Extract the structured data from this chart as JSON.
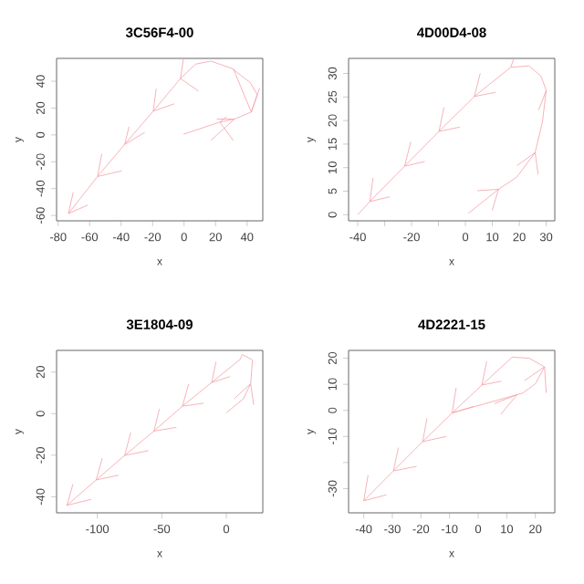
{
  "chart_data": [
    {
      "type": "line",
      "title": "3C56F4-00",
      "xlabel": "x",
      "ylabel": "y",
      "xlim": [
        -81,
        50
      ],
      "ylim": [
        -64,
        57
      ],
      "xticks": [
        -80,
        -60,
        -40,
        -20,
        0,
        20,
        40
      ],
      "yticks": [
        -60,
        -40,
        -20,
        0,
        20,
        40
      ],
      "series": [
        {
          "color": "#f4a0a8",
          "x": [
            -73.5,
            -55,
            -37.7,
            -19.6,
            -2.3,
            7.3,
            17,
            30.4,
            42,
            46.5,
            42.7,
            32,
            22.7,
            -0.4
          ],
          "values": [
            -58.6,
            -31,
            -7,
            17.7,
            42,
            52.7,
            55,
            49.5,
            39,
            30,
            17,
            11.8,
            9.5,
            0.5
          ]
        },
        {
          "color": "#f4a0a8",
          "x": [
            -70.4,
            -73.5,
            -61.2,
            null,
            -52.3,
            -55,
            -39.6,
            null,
            -35,
            -37.7,
            -25,
            null,
            -17.7,
            -19.6,
            -6.2,
            null,
            -0.4,
            -2.3,
            9.2,
            null,
            27,
            22.7,
            31.2,
            null,
            31.2,
            42.7,
            48,
            null,
            20.8,
            32,
            17
          ],
          "values": [
            -42.7,
            -58.6,
            -52.3,
            null,
            -14.1,
            -31,
            -26.8,
            null,
            6.1,
            -7,
            1.8,
            null,
            34.5,
            17.7,
            23.2,
            null,
            57,
            42,
            32.7,
            null,
            13.6,
            9.5,
            -4.1,
            null,
            49.5,
            17,
            35,
            null,
            11.8,
            11.8,
            -4.1
          ]
        }
      ]
    },
    {
      "type": "line",
      "title": "4D00D4-08",
      "xlabel": "x",
      "ylabel": "y",
      "xlim": [
        -43.4,
        33.2
      ],
      "ylim": [
        -1.3,
        33.2
      ],
      "xticks": [
        -40,
        {
          "value": -30,
          "label": null
        },
        -20,
        {
          "value": -10,
          "label": null
        },
        0,
        10,
        20,
        30
      ],
      "yticks": [
        0,
        5,
        10,
        15,
        20,
        25,
        30
      ],
      "series": [
        {
          "color": "#f4a0a8",
          "x": [
            -40,
            -35.5,
            -22.6,
            -9.8,
            3.3,
            16.8,
            23.6,
            28.1,
            30,
            28.6,
            25.9,
            19.1,
            12.3,
            1.1
          ],
          "values": [
            0,
            2.8,
            10.3,
            17.7,
            25.1,
            31.3,
            31.6,
            29.4,
            26.4,
            19.7,
            13.2,
            8,
            5.4,
            0.3
          ]
        },
        {
          "color": "#f4a0a8",
          "x": [
            -34.3,
            -35.5,
            -28.1,
            null,
            -20.3,
            -22.6,
            -15.1,
            null,
            -8,
            -9.8,
            -2.1,
            null,
            5.5,
            3.3,
            11.2,
            null,
            17.9,
            16.8,
            null,
            27.2,
            30,
            null,
            19.1,
            25.9,
            27,
            null,
            4.4,
            12.3,
            9.9
          ],
          "values": [
            7.8,
            2.8,
            3.8,
            null,
            15.5,
            10.3,
            11.3,
            null,
            22.8,
            17.7,
            18.6,
            null,
            30,
            25.1,
            26,
            null,
            33,
            31.3,
            null,
            22.2,
            26.4,
            null,
            10.4,
            13.2,
            8.6,
            null,
            5.1,
            5.4,
            0.9
          ]
        }
      ]
    },
    {
      "type": "line",
      "title": "3E1804-09",
      "xlabel": "x",
      "ylabel": "y",
      "xlim": [
        -131.6,
        28.3
      ],
      "ylim": [
        -47.7,
        30.4
      ],
      "xticks": [
        -100,
        -50,
        0
      ],
      "yticks": [
        -40,
        -20,
        0,
        20
      ],
      "series": [
        {
          "color": "#f4a0a8",
          "x": [
            -123.6,
            -100.9,
            -78.8,
            -56.1,
            -34,
            -11.3,
            10.8,
            12.3,
            20.3,
            18.9,
            13.2,
            0
          ],
          "values": [
            -44.1,
            -31.9,
            -20.1,
            -8.4,
            3.6,
            15,
            26.1,
            28.4,
            25.8,
            14.4,
            7.1,
            0.4
          ]
        },
        {
          "color": "#f4a0a8",
          "x": [
            -118.9,
            -123.6,
            -104.7,
            null,
            -96.2,
            -100.9,
            -83.5,
            null,
            -74.1,
            -78.8,
            -60.4,
            null,
            -51.9,
            -56.1,
            -38.7,
            null,
            -29.2,
            -34,
            -17.5,
            null,
            -8,
            -11.3,
            2.8,
            null,
            21.2,
            18.9,
            6.1
          ],
          "values": [
            -33.9,
            -44.1,
            -41.2,
            null,
            -21.4,
            -31.9,
            -29.6,
            null,
            -9,
            -20.1,
            -17.8,
            null,
            2.2,
            -8.4,
            -6.6,
            null,
            14.3,
            3.6,
            5,
            null,
            24.9,
            15,
            17.8,
            null,
            4.2,
            14.4,
            7.1
          ]
        }
      ]
    },
    {
      "type": "line",
      "title": "4D2221-15",
      "xlabel": "x",
      "ylabel": "y",
      "xlim": [
        -45.3,
        26.8
      ],
      "ylim": [
        -39.3,
        23
      ],
      "xticks": [
        -40,
        -30,
        -20,
        -10,
        0,
        10,
        20
      ],
      "yticks": [
        -30,
        {
          "value": -20,
          "label": null
        },
        -10,
        0,
        10,
        20
      ],
      "series": [
        {
          "color": "#f4a0a8",
          "x": [
            -40,
            -29.6,
            -19.4,
            -9.1,
            1.3,
            11.9,
            17.9,
            23.2,
            20,
            15.7,
            13.6,
            -8.7
          ],
          "values": [
            -34.7,
            -23.2,
            -12,
            -1,
            9.7,
            20.4,
            20,
            16.7,
            10.2,
            6.7,
            6,
            -0.8
          ]
        },
        {
          "color": "#f4a0a8",
          "x": [
            -38.5,
            -40,
            -32.1,
            null,
            -27.9,
            -29.6,
            -21.5,
            null,
            -17.9,
            -19.4,
            -11.1,
            null,
            -7.7,
            -9.1,
            -1.5,
            null,
            3,
            1.3,
            8.1,
            null,
            23.8,
            23.2,
            16.2,
            null,
            7.9,
            13.6,
            5.7
          ],
          "values": [
            -24.9,
            -34.7,
            -32.4,
            null,
            -14.3,
            -23.2,
            -21.5,
            null,
            -3.1,
            -12,
            -10,
            null,
            8.6,
            -1,
            1.5,
            null,
            18.9,
            9.7,
            11.2,
            null,
            6.7,
            16.7,
            11.4,
            null,
            -1.5,
            6,
            2.6
          ]
        }
      ]
    }
  ]
}
